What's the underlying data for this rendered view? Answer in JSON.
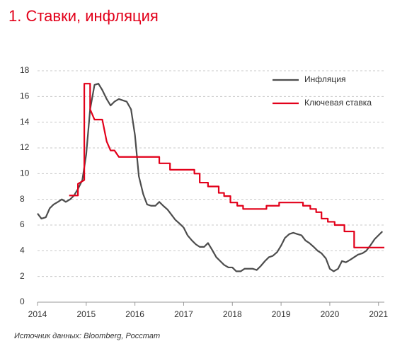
{
  "chart_data": {
    "type": "line",
    "title": "1. Ставки, инфляция",
    "source": "Источник данных: Bloomberg, Росстат",
    "xlim": [
      2014,
      2021.12
    ],
    "xticks": [
      2014,
      2015,
      2016,
      2017,
      2018,
      2019,
      2020,
      2021
    ],
    "ylim": [
      0,
      18
    ],
    "yticks": [
      0,
      2,
      4,
      6,
      8,
      10,
      12,
      14,
      16,
      18
    ],
    "grid": true,
    "legend": "upper right",
    "series": [
      {
        "name": "Инфляция",
        "color": "#4d4d4d",
        "x": [
          2014.0,
          2014.08,
          2014.17,
          2014.25,
          2014.33,
          2014.42,
          2014.5,
          2014.58,
          2014.67,
          2014.75,
          2014.83,
          2014.92,
          2015.0,
          2015.08,
          2015.17,
          2015.25,
          2015.33,
          2015.42,
          2015.5,
          2015.58,
          2015.67,
          2015.75,
          2015.83,
          2015.92,
          2016.0,
          2016.08,
          2016.17,
          2016.25,
          2016.33,
          2016.42,
          2016.5,
          2016.58,
          2016.67,
          2016.75,
          2016.83,
          2016.92,
          2017.0,
          2017.08,
          2017.17,
          2017.25,
          2017.33,
          2017.42,
          2017.5,
          2017.58,
          2017.67,
          2017.75,
          2017.83,
          2017.92,
          2018.0,
          2018.08,
          2018.17,
          2018.25,
          2018.33,
          2018.42,
          2018.5,
          2018.58,
          2018.67,
          2018.75,
          2018.83,
          2018.92,
          2019.0,
          2019.08,
          2019.17,
          2019.25,
          2019.33,
          2019.42,
          2019.5,
          2019.58,
          2019.67,
          2019.75,
          2019.83,
          2019.92,
          2020.0,
          2020.08,
          2020.17,
          2020.25,
          2020.33,
          2020.42,
          2020.5,
          2020.58,
          2020.67,
          2020.75,
          2020.83,
          2020.92,
          2021.0,
          2021.08
        ],
        "values": [
          6.9,
          6.5,
          6.6,
          7.3,
          7.6,
          7.8,
          8.0,
          7.8,
          8.0,
          8.3,
          8.8,
          9.5,
          11.5,
          15.0,
          16.9,
          17.0,
          16.5,
          15.8,
          15.3,
          15.6,
          15.8,
          15.7,
          15.6,
          15.0,
          13.0,
          9.8,
          8.4,
          7.6,
          7.5,
          7.5,
          7.8,
          7.5,
          7.2,
          6.8,
          6.4,
          6.1,
          5.8,
          5.2,
          4.8,
          4.5,
          4.3,
          4.3,
          4.6,
          4.1,
          3.5,
          3.2,
          2.9,
          2.7,
          2.7,
          2.4,
          2.4,
          2.6,
          2.6,
          2.6,
          2.5,
          2.8,
          3.2,
          3.5,
          3.6,
          3.9,
          4.4,
          5.0,
          5.3,
          5.4,
          5.3,
          5.2,
          4.8,
          4.6,
          4.3,
          4.0,
          3.8,
          3.4,
          2.6,
          2.4,
          2.6,
          3.2,
          3.1,
          3.3,
          3.5,
          3.7,
          3.8,
          4.0,
          4.4,
          4.9,
          5.2,
          5.5
        ]
      },
      {
        "name": "Ключевая ставка",
        "color": "#e2001a",
        "x": [
          2014.65,
          2014.83,
          2014.83,
          2014.96,
          2014.96,
          2015.08,
          2015.08,
          2015.17,
          2015.17,
          2015.33,
          2015.42,
          2015.5,
          2015.58,
          2015.58,
          2015.67,
          2015.67,
          2016.5,
          2016.5,
          2016.72,
          2016.72,
          2017.22,
          2017.22,
          2017.33,
          2017.33,
          2017.5,
          2017.5,
          2017.72,
          2017.72,
          2017.83,
          2017.83,
          2017.96,
          2017.96,
          2018.1,
          2018.1,
          2018.22,
          2018.22,
          2018.7,
          2018.7,
          2018.96,
          2018.96,
          2019.45,
          2019.45,
          2019.6,
          2019.6,
          2019.72,
          2019.72,
          2019.83,
          2019.83,
          2019.96,
          2019.96,
          2020.1,
          2020.1,
          2020.3,
          2020.3,
          2020.5,
          2020.5,
          2021.12
        ],
        "values": [
          8.3,
          8.3,
          9.2,
          9.5,
          17,
          17,
          15,
          14.2,
          14.2,
          14.2,
          12.5,
          11.8,
          11.8,
          11.8,
          11.3,
          11.3,
          11.3,
          10.8,
          10.8,
          10.3,
          10.3,
          10.0,
          10.0,
          9.3,
          9.3,
          9.0,
          9.0,
          8.5,
          8.5,
          8.25,
          8.25,
          7.75,
          7.75,
          7.5,
          7.5,
          7.25,
          7.25,
          7.5,
          7.5,
          7.75,
          7.75,
          7.5,
          7.5,
          7.25,
          7.25,
          7.0,
          7.0,
          6.5,
          6.5,
          6.25,
          6.25,
          6.0,
          6.0,
          5.5,
          5.5,
          4.25,
          4.25
        ]
      }
    ]
  }
}
